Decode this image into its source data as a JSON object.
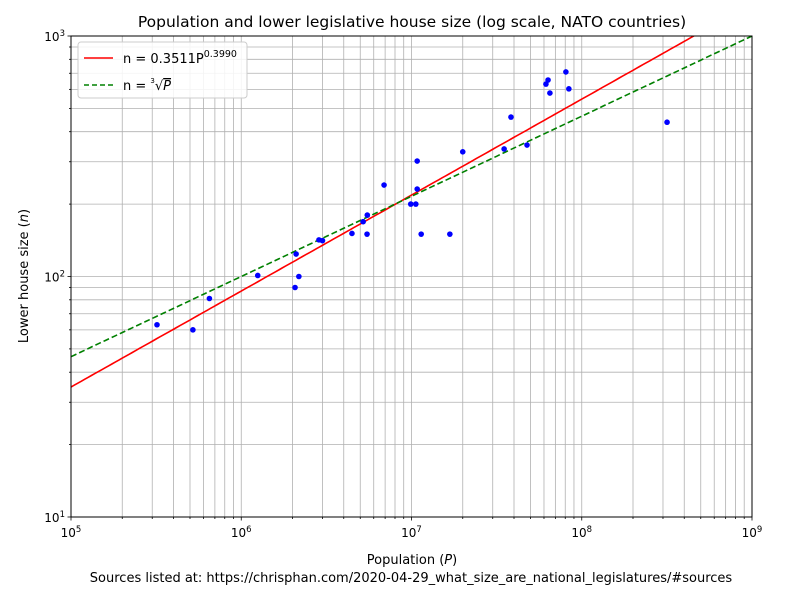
{
  "chart_data": {
    "type": "scatter",
    "title": "Population and lower legislative house size (log scale, NATO countries)",
    "xlabel": "Population (P)",
    "xlabel_prefix": "Population (",
    "xlabel_var": "P",
    "xlabel_suffix": ")",
    "ylabel": "Lower house size (n)",
    "ylabel_prefix": "Lower house size (",
    "ylabel_var": "n",
    "ylabel_suffix": ")",
    "xscale": "log",
    "yscale": "log",
    "xlim": [
      100000,
      1000000000
    ],
    "ylim": [
      10,
      1000
    ],
    "grid": true,
    "legend_position": "top-left",
    "x_ticks": [
      {
        "base": "10",
        "exp": "5",
        "value": 100000.0
      },
      {
        "base": "10",
        "exp": "6",
        "value": 1000000.0
      },
      {
        "base": "10",
        "exp": "7",
        "value": 10000000.0
      },
      {
        "base": "10",
        "exp": "8",
        "value": 100000000.0
      },
      {
        "base": "10",
        "exp": "9",
        "value": 1000000000.0
      }
    ],
    "y_ticks": [
      {
        "base": "10",
        "exp": "1",
        "value": 10
      },
      {
        "base": "10",
        "exp": "2",
        "value": 100
      },
      {
        "base": "10",
        "exp": "3",
        "value": 1000
      }
    ],
    "points": {
      "color": "#0000ff",
      "x": [
        320000,
        520000,
        650000,
        1250000,
        2070000,
        2100000,
        2180000,
        2860000,
        3000000,
        4470000,
        5480000,
        5200000,
        5500000,
        6900000,
        9900000,
        10600000,
        10800000,
        10800000,
        11400000,
        16800000,
        20000000,
        35000000,
        38400000,
        47700000,
        61600000,
        63400000,
        65000000,
        80700000,
        84000000,
        317000000
      ],
      "y": [
        63,
        60,
        81,
        101,
        90,
        124,
        100,
        142,
        141,
        151,
        150,
        169,
        180,
        240,
        200,
        200,
        302,
        231,
        150,
        150,
        330,
        339,
        460,
        352,
        631,
        656,
        579,
        709,
        603,
        438
      ]
    },
    "series": [
      {
        "name": "n = 0.3511P^0.3990",
        "label_main": "n = 0.3511P",
        "label_exp": "0.3990",
        "coef": 0.3511,
        "power": 0.399,
        "color": "#ff0000",
        "dash": "solid"
      },
      {
        "name": "n = ∛P",
        "label_main": "n = ",
        "label_root": "3",
        "label_var": "P",
        "coef": 1,
        "power": 0.3333333,
        "color": "#008000",
        "dash": "dashed"
      }
    ],
    "footer": "Sources listed at: https://chrisphan.com/2020-04-29_what_size_are_national_legislatures/#sources"
  }
}
